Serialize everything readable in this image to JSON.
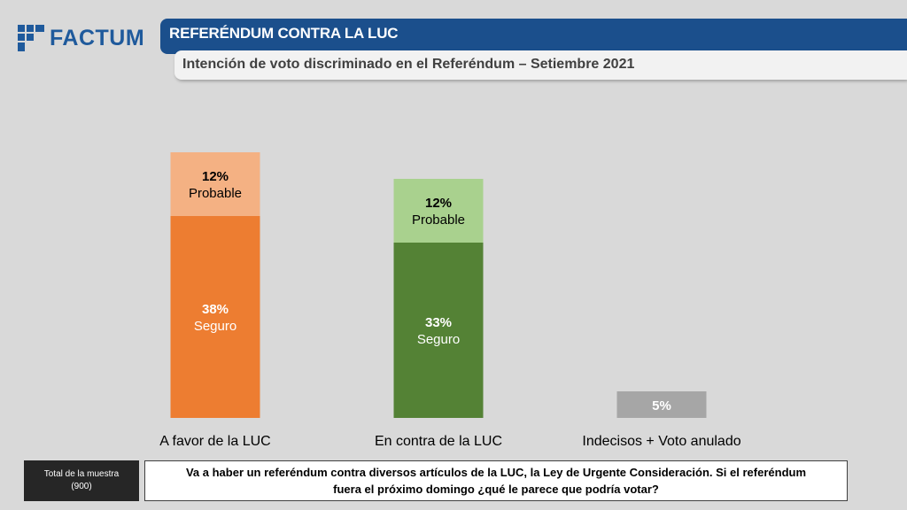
{
  "logo": {
    "text": "FACTUM"
  },
  "header": {
    "title": "REFERÉNDUM CONTRA LA LUC",
    "subtitle": "Intención de voto discriminado en el Referéndum – Setiembre 2021"
  },
  "footer": {
    "sample_label_line1": "Total de la muestra",
    "sample_label_line2": "(900)",
    "question": "Va a haber un referéndum contra diversos artículos de la LUC, la Ley de Urgente Consideración. Si el referéndum fuera el próximo domingo ¿qué le parece que podría votar?"
  },
  "colors": {
    "brand": "#1b4f8c",
    "favor_seguro": "#ed7d31",
    "favor_probable": "#f4b183",
    "contra_seguro": "#548235",
    "contra_probable": "#a9d18e",
    "indecisos": "#a6a6a6"
  },
  "chart_data": {
    "type": "bar",
    "stacked": true,
    "title": "Intención de voto discriminado en el Referéndum – Setiembre 2021",
    "categories": [
      "A favor de la LUC",
      "En contra de la LUC",
      "Indecisos + Voto anulado"
    ],
    "segments": [
      [
        {
          "label": "Seguro",
          "value": 38,
          "display": "38%",
          "color": "#ed7d31",
          "text_color": "#ffffff"
        },
        {
          "label": "Probable",
          "value": 12,
          "display": "12%",
          "color": "#f4b183",
          "text_color": "#000000"
        }
      ],
      [
        {
          "label": "Seguro",
          "value": 33,
          "display": "33%",
          "color": "#548235",
          "text_color": "#ffffff"
        },
        {
          "label": "Probable",
          "value": 12,
          "display": "12%",
          "color": "#a9d18e",
          "text_color": "#000000"
        }
      ],
      [
        {
          "label": "",
          "value": 5,
          "display": "5%",
          "color": "#a6a6a6",
          "text_color": "#ffffff"
        }
      ]
    ],
    "ylim": [
      0,
      50
    ],
    "grid": false,
    "legend": "none"
  }
}
